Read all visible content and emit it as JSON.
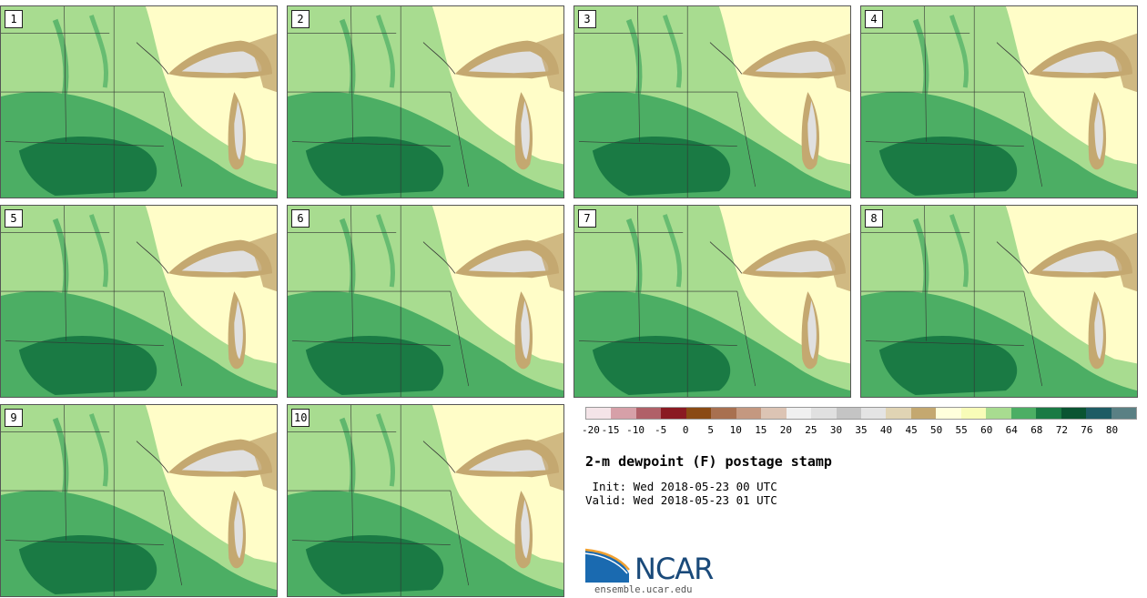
{
  "panels": [
    {
      "label": "1"
    },
    {
      "label": "2"
    },
    {
      "label": "3"
    },
    {
      "label": "4"
    },
    {
      "label": "5"
    },
    {
      "label": "6"
    },
    {
      "label": "7"
    },
    {
      "label": "8"
    },
    {
      "label": "9"
    },
    {
      "label": "10"
    }
  ],
  "colorbar": {
    "ticks": [
      "-20",
      "-15",
      "-10",
      "-5",
      "0",
      "5",
      "10",
      "15",
      "20",
      "25",
      "30",
      "35",
      "40",
      "45",
      "50",
      "55",
      "60",
      "64",
      "68",
      "72",
      "76",
      "80"
    ],
    "colors": [
      "#f4e4e8",
      "#d6a0a8",
      "#b06068",
      "#8a1a22",
      "#8a4a14",
      "#a87050",
      "#c49880",
      "#dcc4b4",
      "#f0f0f0",
      "#e0e0e0",
      "#c4c4c4",
      "#e4e4e4",
      "#e0d4b4",
      "#c4a870",
      "#ffffdc",
      "#f8fcb8",
      "#a8dc90",
      "#4cae64",
      "#1a7a44",
      "#0a5432",
      "#1e5c64",
      "#5a8084"
    ]
  },
  "title": "2-m dewpoint (F) postage stamp",
  "init": " Init: Wed 2018-05-23 00 UTC",
  "valid": "Valid: Wed 2018-05-23 01 UTC",
  "logo": {
    "text": "NCAR",
    "url": "ensemble.ucar.edu"
  },
  "colors": {
    "light_yellow": "#fffdc8",
    "pale_green": "#a8dc90",
    "green": "#4cae64",
    "dark_green": "#1a7a44",
    "tan": "#c4a870",
    "lake": "#e0e0e0"
  }
}
